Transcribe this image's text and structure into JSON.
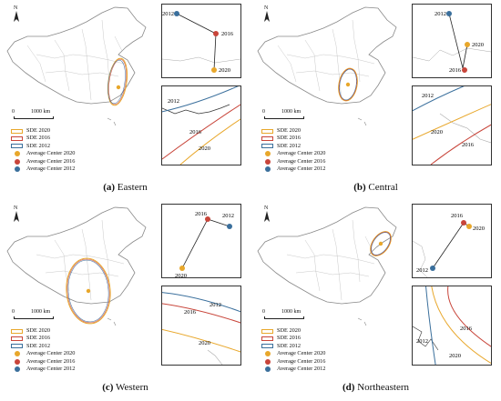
{
  "legend": {
    "sde_2020": "SDE 2020",
    "sde_2016": "SDE 2016",
    "sde_2012": "SDE 2012",
    "center_2020": "Average Center 2020",
    "center_2016": "Average Center 2016",
    "center_2012": "Average Center 2012"
  },
  "scale": {
    "zero": "0",
    "distance": "1000 km"
  },
  "north_label": "N",
  "colors": {
    "y2020": "#e8a72b",
    "y2016": "#c8453a",
    "y2012": "#3a6f9c",
    "boundary": "#9a9a9a"
  },
  "panels": [
    {
      "letter": "(a)",
      "name": "Eastern",
      "inset_top": {
        "y2012": "2012",
        "y2016": "2016",
        "y2020": "2020"
      },
      "inset_bot": {
        "y2012": "2012",
        "y2016": "2016",
        "y2020": "2020"
      }
    },
    {
      "letter": "(b)",
      "name": "Central",
      "inset_top": {
        "y2012": "2012",
        "y2016": "2016",
        "y2020": "2020"
      },
      "inset_bot": {
        "y2012": "2012",
        "y2016": "2016",
        "y2020": "2020"
      }
    },
    {
      "letter": "(c)",
      "name": "Western",
      "inset_top": {
        "y2012": "2012",
        "y2016": "2016",
        "y2020": "2020"
      },
      "inset_bot": {
        "y2012": "2012",
        "y2016": "2016",
        "y2020": "2020"
      }
    },
    {
      "letter": "(d)",
      "name": "Northeastern",
      "inset_top": {
        "y2012": "2012",
        "y2016": "2016",
        "y2020": "2020"
      },
      "inset_bot": {
        "y2012": "2012",
        "y2016": "2016",
        "y2020": "2020"
      }
    }
  ]
}
